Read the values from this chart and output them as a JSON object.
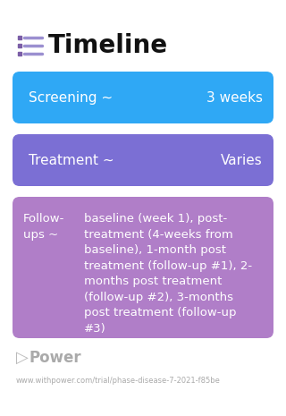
{
  "title": "Timeline",
  "background_color": "#ffffff",
  "title_color": "#111111",
  "title_fontsize": 20,
  "title_fontweight": "bold",
  "icon_color": "#7b5ea7",
  "rows": [
    {
      "label": "Screening ~",
      "value": "3 weeks",
      "bg_color": "#2fa8f5",
      "text_color": "#ffffff",
      "type": "simple"
    },
    {
      "label": "Treatment ~",
      "value": "Varies",
      "bg_color": "#7b6fd4",
      "text_color": "#ffffff",
      "type": "simple"
    },
    {
      "label_left": "Follow-\nups ~",
      "label_right": "baseline (week 1), post-\ntreatment (4-weeks from\nbaseline), 1-month post\ntreatment (follow-up #1), 2-\nmonths post treatment\n(follow-up #2), 3-months\npost treatment (follow-up\n#3)",
      "bg_color": "#b07ec8",
      "text_color": "#ffffff",
      "type": "complex"
    }
  ],
  "footer_text": "Power",
  "footer_url": "www.withpower.com/trial/phase-disease-7-2021-f85be",
  "footer_color": "#aaaaaa"
}
